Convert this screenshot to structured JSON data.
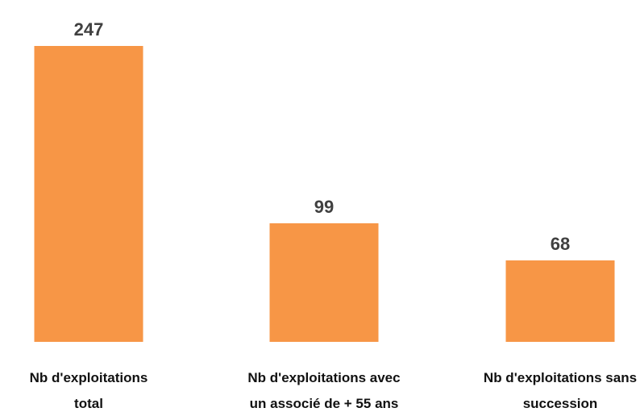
{
  "chart_data": {
    "type": "bar",
    "categories": [
      [
        "Nb d'exploitations",
        "total"
      ],
      [
        "Nb d'exploitations avec",
        "un associé de + 55 ans"
      ],
      [
        "Nb d'exploitations sans",
        "succession"
      ]
    ],
    "values": [
      247,
      99,
      68
    ],
    "data_labels": [
      "247",
      "99",
      "68"
    ],
    "ylim": [
      0,
      247
    ],
    "grid": false,
    "legend": "none",
    "bar_color": "#F79646",
    "label_color": "#404040"
  }
}
